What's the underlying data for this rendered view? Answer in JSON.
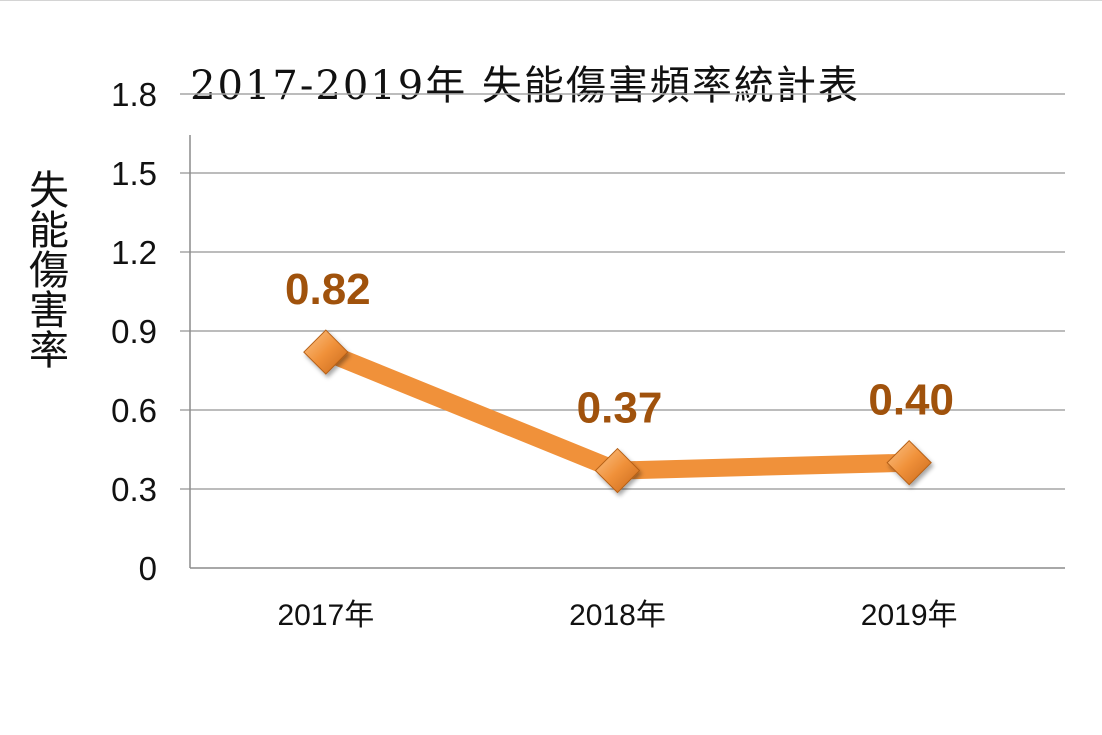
{
  "chart_data": {
    "type": "line",
    "title": "2017-2019年  失能傷害頻率統計表",
    "xlabel": "",
    "ylabel": "失能傷害率",
    "categories": [
      "2017年",
      "2018年",
      "2019年"
    ],
    "series": [
      {
        "values": [
          0.82,
          0.37,
          0.4
        ]
      }
    ],
    "data_labels": [
      "0.82",
      "0.37",
      "0.40"
    ],
    "y_ticks": [
      "0",
      "0.3",
      "0.6",
      "0.9",
      "1.2",
      "1.5",
      "1.8"
    ],
    "ylim": [
      0,
      1.8
    ],
    "grid": true,
    "legend": "none",
    "colors": {
      "line": "#f0913a",
      "marker": "#e8892f",
      "label": "#a0520c",
      "grid": "#a6a6a6"
    }
  }
}
